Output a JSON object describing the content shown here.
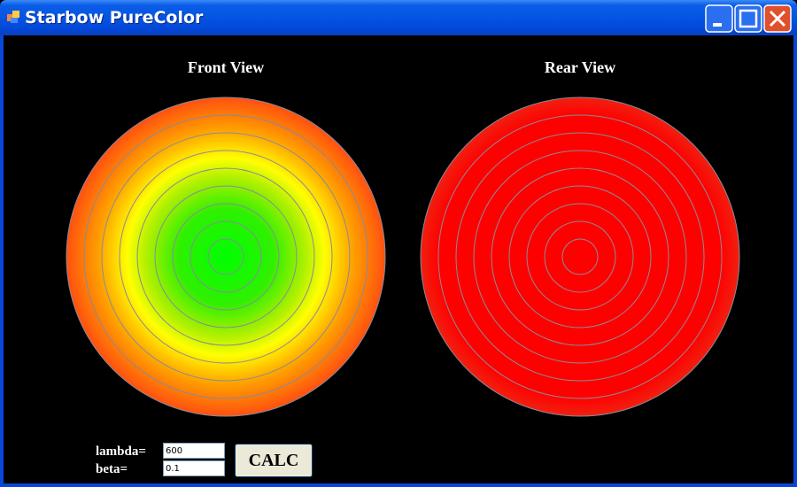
{
  "window": {
    "title": "Starbow PureColor"
  },
  "views": {
    "front": {
      "label": "Front View"
    },
    "rear": {
      "label": "Rear View"
    }
  },
  "controls": {
    "lambda": {
      "label": "lambda=",
      "value": "600"
    },
    "beta": {
      "label": "beta=",
      "value": "0.1"
    },
    "button": {
      "label": "CALC"
    }
  }
}
